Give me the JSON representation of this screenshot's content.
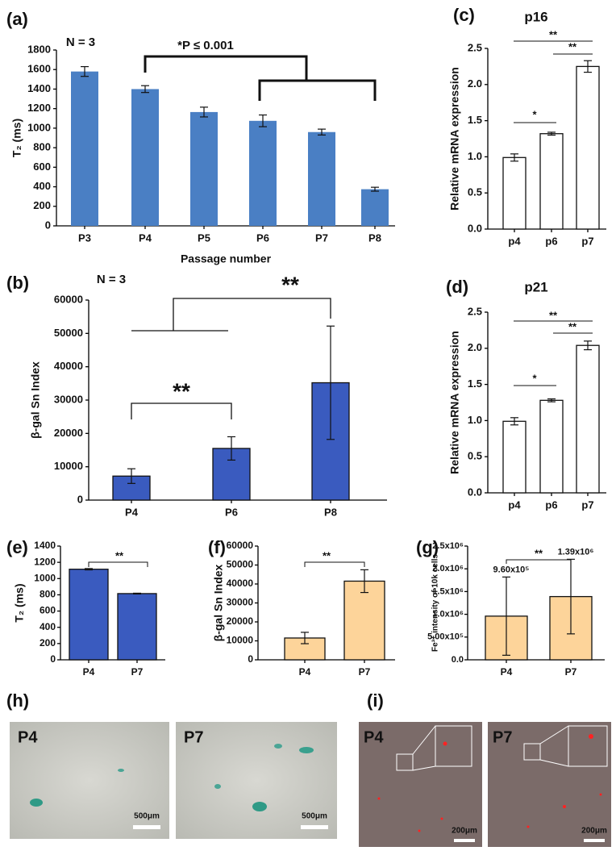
{
  "chart_data": [
    {
      "type": "bar",
      "panel": "(a)",
      "ylabel": "T₂ (ms)",
      "xlabel": "Passage number",
      "categories": [
        "P3",
        "P4",
        "P5",
        "P6",
        "P7",
        "P8"
      ],
      "values": [
        1580,
        1400,
        1165,
        1075,
        960,
        375
      ],
      "errors": [
        50,
        35,
        50,
        60,
        30,
        20
      ],
      "color": "#4a7fc4",
      "ylim": [
        0,
        1800
      ],
      "yticks": [
        0,
        200,
        400,
        600,
        800,
        1000,
        1200,
        1400,
        1600,
        1800
      ],
      "annotations": [
        "N = 3",
        "*P ≤ 0.001"
      ]
    },
    {
      "type": "bar",
      "panel": "(b)",
      "ylabel": "β-gal Sn Index",
      "categories": [
        "P4",
        "P6",
        "P8"
      ],
      "values": [
        7200,
        15500,
        35200
      ],
      "errors": [
        2200,
        3500,
        17000
      ],
      "color": "#3a5bbf",
      "ylim": [
        0,
        60000
      ],
      "yticks": [
        0,
        10000,
        20000,
        30000,
        40000,
        50000,
        60000
      ],
      "annotations": [
        "N = 3",
        "**",
        "**"
      ]
    },
    {
      "type": "bar",
      "panel": "(c)",
      "title": "p16",
      "ylabel": "Relative mRNA expression",
      "categories": [
        "p4",
        "p6",
        "p7"
      ],
      "values": [
        0.99,
        1.32,
        2.25
      ],
      "errors": [
        0.05,
        0.02,
        0.08
      ],
      "color": "#ffffff",
      "ylim": [
        0,
        2.5
      ],
      "yticks": [
        {
          "value": 0,
          "label": "0.0"
        },
        0.5,
        {
          "value": 1,
          "label": "1.0"
        },
        1.5,
        {
          "value": 2,
          "label": "2.0"
        },
        2.5
      ],
      "annotations": [
        "*",
        "**",
        "**"
      ]
    },
    {
      "type": "bar",
      "panel": "(d)",
      "title": "p21",
      "ylabel": "Relative mRNA expression",
      "categories": [
        "p4",
        "p6",
        "p7"
      ],
      "values": [
        0.99,
        1.28,
        2.04
      ],
      "errors": [
        0.05,
        0.02,
        0.06
      ],
      "color": "#ffffff",
      "ylim": [
        0,
        2.5
      ],
      "yticks": [
        {
          "value": 0,
          "label": "0.0"
        },
        0.5,
        {
          "value": 1,
          "label": "1.0"
        },
        1.5,
        {
          "value": 2,
          "label": "2.0"
        },
        2.5
      ],
      "annotations": [
        "*",
        "**",
        "**"
      ]
    },
    {
      "type": "bar",
      "panel": "(e)",
      "ylabel": "T₂ (ms)",
      "categories": [
        "P4",
        "P7"
      ],
      "values": [
        1115,
        815
      ],
      "errors": [
        8,
        5
      ],
      "color": "#3a5bbf",
      "ylim": [
        0,
        1400
      ],
      "yticks": [
        0,
        200,
        400,
        600,
        800,
        1000,
        1200,
        1400
      ],
      "annotations": [
        "**"
      ]
    },
    {
      "type": "bar",
      "panel": "(f)",
      "ylabel": "β-gal Sn Index",
      "categories": [
        "P4",
        "P7"
      ],
      "values": [
        11500,
        41500
      ],
      "errors": [
        3000,
        6000
      ],
      "color": "#fdd49a",
      "ylim": [
        0,
        60000
      ],
      "yticks": [
        0,
        10000,
        20000,
        30000,
        40000,
        50000,
        60000
      ],
      "annotations": [
        "**"
      ]
    },
    {
      "type": "bar",
      "panel": "(g)",
      "ylabel": "Fe³⁺ intensity of 10k cells",
      "categories": [
        "P4",
        "P7"
      ],
      "values": [
        960000,
        1390000
      ],
      "errors": [
        860000,
        820000
      ],
      "value_labels": [
        "9.60x10⁵",
        "1.39x10⁶"
      ],
      "color": "#fdd49a",
      "ylim": [
        0,
        2500000
      ],
      "yticks": [
        {
          "value": 0,
          "label": "0.0"
        },
        {
          "value": 500000,
          "label": "5.00x10⁵"
        },
        {
          "value": 1000000,
          "label": "1.0x10⁶"
        },
        {
          "value": 1500000,
          "label": "1.5x10⁶"
        },
        {
          "value": 2000000,
          "label": "2.0x10⁶"
        },
        {
          "value": 2500000,
          "label": "2.5x10⁶"
        }
      ],
      "annotations": [
        "**"
      ]
    }
  ],
  "image_panels": [
    {
      "panel": "(h)",
      "images": [
        {
          "label": "P4",
          "scale": "500μm"
        },
        {
          "label": "P7",
          "scale": "500μm"
        }
      ]
    },
    {
      "panel": "(i)",
      "images": [
        {
          "label": "P4",
          "scale": "200μm"
        },
        {
          "label": "P7",
          "scale": "200μm"
        }
      ]
    }
  ]
}
